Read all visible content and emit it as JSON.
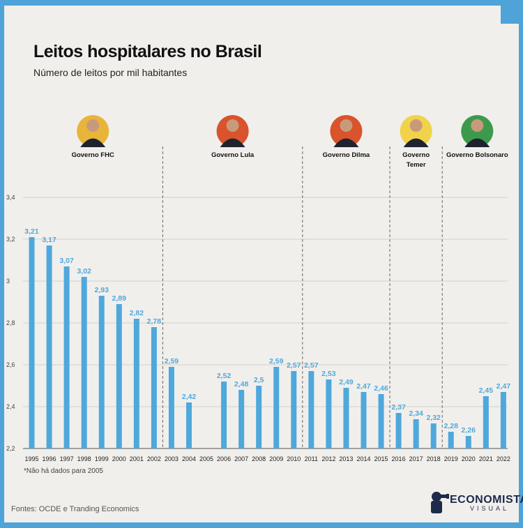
{
  "header": {
    "title": "Leitos hospitalares no Brasil",
    "subtitle": "Número de leitos por mil habitantes"
  },
  "governments": [
    {
      "label": "Governo FHC",
      "years": [
        1995,
        2002
      ],
      "portrait_color": "#e8b43a"
    },
    {
      "label": "Governo Lula",
      "years": [
        2003,
        2010
      ],
      "portrait_color": "#d9532c"
    },
    {
      "label": "Governo Dilma",
      "years": [
        2011,
        2015
      ],
      "portrait_color": "#d9532c"
    },
    {
      "label": "Governo Temer",
      "years": [
        2016,
        2018
      ],
      "portrait_color": "#f0d34a"
    },
    {
      "label": "Governo Bolsonaro",
      "years": [
        2019,
        2022
      ],
      "portrait_color": "#3d9a4d"
    }
  ],
  "chart_data": {
    "type": "bar",
    "title": "Leitos hospitalares no Brasil",
    "subtitle": "Número de leitos por mil habitantes",
    "categories": [
      "1995",
      "1996",
      "1997",
      "1998",
      "1999",
      "2000",
      "2001",
      "2002",
      "2003",
      "2004",
      "2005",
      "2006",
      "2007",
      "2008",
      "2009",
      "2010",
      "2011",
      "2012",
      "2013",
      "2014",
      "2015",
      "2016",
      "2017",
      "2018",
      "2019",
      "2020",
      "2021",
      "2022"
    ],
    "values": [
      3.21,
      3.17,
      3.07,
      3.02,
      2.93,
      2.89,
      2.82,
      2.78,
      2.59,
      2.42,
      null,
      2.52,
      2.48,
      2.5,
      2.59,
      2.57,
      2.57,
      2.53,
      2.49,
      2.47,
      2.46,
      2.37,
      2.34,
      2.32,
      2.28,
      2.26,
      2.45,
      2.47
    ],
    "value_labels": [
      "3,21",
      "3,17",
      "3,07",
      "3,02",
      "2,93",
      "2,89",
      "2,82",
      "2,78",
      "2,59",
      "2,42",
      "",
      "2,52",
      "2,48",
      "2,5",
      "2,59",
      "2,57",
      "2,57",
      "2,53",
      "2,49",
      "2,47",
      "2,46",
      "2,37",
      "2,34",
      "2,32",
      "2,28",
      "2,26",
      "2,45",
      "2,47"
    ],
    "yticks": [
      {
        "value": 2.2,
        "label": "2,2"
      },
      {
        "value": 2.4,
        "label": "2,4"
      },
      {
        "value": 2.6,
        "label": "2,6"
      },
      {
        "value": 2.8,
        "label": "2,8"
      },
      {
        "value": 3.0,
        "label": "3"
      },
      {
        "value": 3.2,
        "label": "3,2"
      },
      {
        "value": 3.4,
        "label": "3,4"
      }
    ],
    "ylim": [
      2.2,
      3.4
    ],
    "grid": true,
    "bar_color": "#4ea8dc",
    "label_color": "#4ea8dc",
    "divider_after": [
      "2002",
      "2010",
      "2015",
      "2018"
    ]
  },
  "footnote": "*Não há dados para 2005",
  "source": "Fontes: OCDE e Tranding Economics",
  "logo": {
    "name": "ECONOMISTA",
    "tagline": "VISUAL"
  },
  "colors": {
    "frame": "#4ea3d8",
    "background": "#f1efec",
    "bar": "#4ea8dc"
  }
}
